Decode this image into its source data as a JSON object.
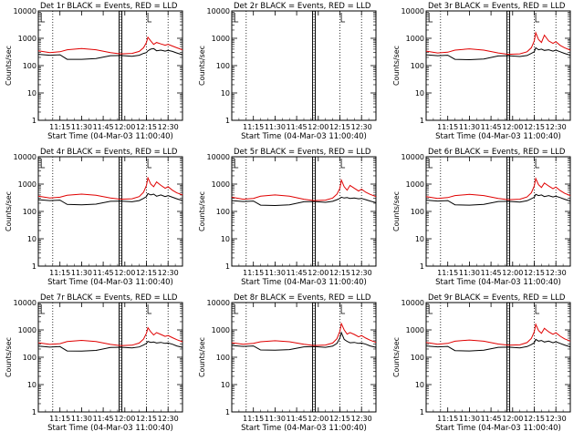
{
  "colors": {
    "events": "#000000",
    "lld": "#e00000",
    "background": "#ffffff"
  },
  "common": {
    "xlabel": "Start Time (04-Mar-03 11:00:40)",
    "ylabel": "Counts/sec",
    "x_tick_labels": [
      "11:15",
      "11:30",
      "11:45",
      "12:00",
      "12:15",
      "12:30"
    ],
    "y_tick_labels": [
      "1",
      "10",
      "100",
      "1000",
      "10000"
    ]
  },
  "chart_data": [
    {
      "type": "line",
      "panel": 1,
      "has_data": true,
      "title": "Det 1r BLACK = Events, RED = LLD",
      "xlabel": "Start Time (04-Mar-03 11:00:40)",
      "ylabel": "Counts/sec",
      "x_units": "minutes after 11:00",
      "xlim": [
        0,
        100
      ],
      "ylim": [
        1,
        10000
      ],
      "yscale": "log",
      "dotted_lines_x": [
        10,
        57,
        75,
        90
      ],
      "solid_lines_x": [
        57
      ],
      "series": [
        {
          "name": "Events",
          "color": "#000000",
          "x": [
            0,
            8,
            15,
            20,
            30,
            40,
            50,
            57,
            65,
            70,
            73,
            75,
            76,
            78,
            80,
            82,
            85,
            88,
            90,
            93,
            96,
            100
          ],
          "y": [
            260,
            240,
            250,
            170,
            170,
            180,
            230,
            235,
            220,
            240,
            280,
            300,
            350,
            400,
            420,
            350,
            370,
            340,
            360,
            330,
            290,
            250
          ]
        },
        {
          "name": "LLD",
          "color": "#e00000",
          "x": [
            0,
            8,
            15,
            20,
            30,
            40,
            50,
            57,
            65,
            70,
            73,
            75,
            76,
            78,
            80,
            82,
            85,
            88,
            90,
            93,
            96,
            100
          ],
          "y": [
            350,
            300,
            320,
            380,
            420,
            380,
            300,
            270,
            280,
            330,
            450,
            700,
            1100,
            800,
            600,
            700,
            620,
            560,
            600,
            520,
            450,
            380
          ]
        }
      ]
    },
    {
      "type": "line",
      "panel": 2,
      "has_data": false,
      "title": "Det 2r BLACK = Events, RED = LLD",
      "xlabel": "Start Time (04-Mar-03 11:00:40)",
      "ylabel": "Counts/sec",
      "x_units": "minutes after 11:00",
      "xlim": [
        0,
        100
      ],
      "ylim": [
        1,
        10000
      ],
      "yscale": "log",
      "dotted_lines_x": [
        10,
        57,
        75,
        90
      ],
      "solid_lines_x": [
        57
      ],
      "series": []
    },
    {
      "type": "line",
      "panel": 3,
      "has_data": true,
      "title": "Det 3r BLACK = Events, RED = LLD",
      "xlabel": "Start Time (04-Mar-03 11:00:40)",
      "ylabel": "Counts/sec",
      "x_units": "minutes after 11:00",
      "xlim": [
        0,
        100
      ],
      "ylim": [
        1,
        10000
      ],
      "yscale": "log",
      "dotted_lines_x": [
        10,
        57,
        75,
        90
      ],
      "solid_lines_x": [
        57
      ],
      "series": [
        {
          "name": "Events",
          "color": "#000000",
          "x": [
            0,
            8,
            15,
            20,
            30,
            40,
            50,
            57,
            65,
            70,
            73,
            75,
            76,
            78,
            80,
            82,
            85,
            88,
            90,
            93,
            96,
            100
          ],
          "y": [
            250,
            230,
            240,
            170,
            165,
            175,
            225,
            230,
            215,
            235,
            280,
            320,
            450,
            380,
            400,
            360,
            380,
            340,
            370,
            320,
            280,
            240
          ]
        },
        {
          "name": "LLD",
          "color": "#e00000",
          "x": [
            0,
            8,
            15,
            20,
            30,
            40,
            50,
            57,
            65,
            70,
            73,
            75,
            76,
            78,
            80,
            82,
            85,
            88,
            90,
            93,
            96,
            100
          ],
          "y": [
            340,
            290,
            310,
            370,
            410,
            370,
            290,
            260,
            270,
            320,
            450,
            800,
            1600,
            900,
            700,
            1300,
            800,
            650,
            750,
            550,
            450,
            370
          ]
        }
      ]
    },
    {
      "type": "line",
      "panel": 4,
      "has_data": true,
      "title": "Det 4r BLACK = Events, RED = LLD",
      "xlabel": "Start Time (04-Mar-03 11:00:40)",
      "ylabel": "Counts/sec",
      "x_units": "minutes after 11:00",
      "xlim": [
        0,
        100
      ],
      "ylim": [
        1,
        10000
      ],
      "yscale": "log",
      "dotted_lines_x": [
        10,
        57,
        75,
        90
      ],
      "solid_lines_x": [
        57
      ],
      "series": [
        {
          "name": "Events",
          "color": "#000000",
          "x": [
            0,
            8,
            15,
            20,
            30,
            40,
            50,
            57,
            65,
            70,
            73,
            75,
            76,
            78,
            80,
            82,
            85,
            88,
            90,
            93,
            96,
            100
          ],
          "y": [
            270,
            250,
            260,
            180,
            175,
            185,
            235,
            240,
            225,
            250,
            300,
            350,
            450,
            400,
            430,
            360,
            400,
            350,
            380,
            330,
            290,
            250
          ]
        },
        {
          "name": "LLD",
          "color": "#e00000",
          "x": [
            0,
            8,
            15,
            20,
            30,
            40,
            50,
            57,
            65,
            70,
            73,
            75,
            76,
            78,
            80,
            82,
            85,
            88,
            90,
            93,
            96,
            100
          ],
          "y": [
            360,
            310,
            330,
            390,
            430,
            390,
            310,
            280,
            290,
            350,
            500,
            900,
            1700,
            1000,
            800,
            1200,
            900,
            700,
            800,
            600,
            480,
            400
          ]
        }
      ]
    },
    {
      "type": "line",
      "panel": 5,
      "has_data": true,
      "title": "Det 5r BLACK = Events, RED = LLD",
      "xlabel": "Start Time (04-Mar-03 11:00:40)",
      "ylabel": "Counts/sec",
      "x_units": "minutes after 11:00",
      "xlim": [
        0,
        100
      ],
      "ylim": [
        1,
        10000
      ],
      "yscale": "log",
      "dotted_lines_x": [
        10,
        57,
        75,
        90
      ],
      "solid_lines_x": [
        57
      ],
      "series": [
        {
          "name": "Events",
          "color": "#000000",
          "x": [
            0,
            8,
            15,
            20,
            30,
            40,
            50,
            57,
            65,
            70,
            73,
            75,
            76,
            78,
            80,
            82,
            85,
            88,
            90,
            93,
            96,
            100
          ],
          "y": [
            250,
            230,
            240,
            170,
            165,
            175,
            225,
            230,
            215,
            235,
            270,
            300,
            330,
            310,
            320,
            300,
            310,
            290,
            300,
            270,
            240,
            210
          ]
        },
        {
          "name": "LLD",
          "color": "#e00000",
          "x": [
            0,
            8,
            15,
            20,
            30,
            40,
            50,
            57,
            65,
            70,
            73,
            75,
            76,
            78,
            80,
            82,
            85,
            88,
            90,
            93,
            96,
            100
          ],
          "y": [
            330,
            280,
            300,
            360,
            400,
            360,
            280,
            250,
            260,
            310,
            430,
            700,
            1400,
            800,
            600,
            900,
            700,
            560,
            650,
            500,
            420,
            350
          ]
        }
      ]
    },
    {
      "type": "line",
      "panel": 6,
      "has_data": true,
      "title": "Det 6r BLACK = Events, RED = LLD",
      "xlabel": "Start Time (04-Mar-03 11:00:40)",
      "ylabel": "Counts/sec",
      "x_units": "minutes after 11:00",
      "xlim": [
        0,
        100
      ],
      "ylim": [
        1,
        10000
      ],
      "yscale": "log",
      "dotted_lines_x": [
        10,
        57,
        75,
        90
      ],
      "solid_lines_x": [
        57
      ],
      "series": [
        {
          "name": "Events",
          "color": "#000000",
          "x": [
            0,
            8,
            15,
            20,
            30,
            40,
            50,
            57,
            65,
            70,
            73,
            75,
            76,
            78,
            80,
            82,
            85,
            88,
            90,
            93,
            96,
            100
          ],
          "y": [
            260,
            240,
            250,
            175,
            170,
            180,
            230,
            235,
            220,
            245,
            290,
            330,
            420,
            380,
            400,
            350,
            380,
            340,
            360,
            320,
            280,
            240
          ]
        },
        {
          "name": "LLD",
          "color": "#e00000",
          "x": [
            0,
            8,
            15,
            20,
            30,
            40,
            50,
            57,
            65,
            70,
            73,
            75,
            76,
            78,
            80,
            82,
            85,
            88,
            90,
            93,
            96,
            100
          ],
          "y": [
            350,
            300,
            320,
            380,
            420,
            380,
            300,
            270,
            280,
            340,
            480,
            850,
            1600,
            950,
            750,
            1100,
            850,
            680,
            780,
            580,
            460,
            380
          ]
        }
      ]
    },
    {
      "type": "line",
      "panel": 7,
      "has_data": true,
      "title": "Det 7r BLACK = Events, RED = LLD",
      "xlabel": "Start Time (04-Mar-03 11:00:40)",
      "ylabel": "Counts/sec",
      "x_units": "minutes after 11:00",
      "xlim": [
        0,
        100
      ],
      "ylim": [
        1,
        10000
      ],
      "yscale": "log",
      "dotted_lines_x": [
        10,
        57,
        75,
        90
      ],
      "solid_lines_x": [
        57
      ],
      "series": [
        {
          "name": "Events",
          "color": "#000000",
          "x": [
            0,
            8,
            15,
            20,
            30,
            40,
            50,
            57,
            65,
            70,
            73,
            75,
            76,
            78,
            80,
            82,
            85,
            88,
            90,
            93,
            96,
            100
          ],
          "y": [
            255,
            235,
            245,
            170,
            168,
            178,
            228,
            232,
            218,
            238,
            280,
            320,
            380,
            350,
            360,
            330,
            350,
            320,
            330,
            300,
            260,
            230
          ]
        },
        {
          "name": "LLD",
          "color": "#e00000",
          "x": [
            0,
            8,
            15,
            20,
            30,
            40,
            50,
            57,
            65,
            70,
            73,
            75,
            76,
            78,
            80,
            82,
            85,
            88,
            90,
            93,
            96,
            100
          ],
          "y": [
            340,
            295,
            315,
            375,
            415,
            375,
            295,
            265,
            275,
            330,
            460,
            750,
            1200,
            850,
            650,
            800,
            680,
            580,
            620,
            520,
            440,
            370
          ]
        }
      ]
    },
    {
      "type": "line",
      "panel": 8,
      "has_data": true,
      "title": "Det 8r BLACK = Events, RED = LLD",
      "xlabel": "Start Time (04-Mar-03 11:00:40)",
      "ylabel": "Counts/sec",
      "x_units": "minutes after 11:00",
      "xlim": [
        0,
        100
      ],
      "ylim": [
        1,
        10000
      ],
      "yscale": "log",
      "dotted_lines_x": [
        10,
        57,
        75,
        90
      ],
      "solid_lines_x": [
        57
      ],
      "series": [
        {
          "name": "Events",
          "color": "#000000",
          "x": [
            0,
            8,
            15,
            20,
            30,
            40,
            50,
            57,
            65,
            70,
            73,
            75,
            76,
            78,
            80,
            82,
            85,
            88,
            90,
            93,
            96,
            100
          ],
          "y": [
            270,
            250,
            260,
            185,
            180,
            190,
            240,
            245,
            230,
            255,
            320,
            500,
            800,
            450,
            380,
            340,
            350,
            320,
            330,
            300,
            260,
            230
          ]
        },
        {
          "name": "LLD",
          "color": "#e00000",
          "x": [
            0,
            8,
            15,
            20,
            30,
            40,
            50,
            57,
            65,
            70,
            73,
            75,
            76,
            78,
            80,
            82,
            85,
            88,
            90,
            93,
            96,
            100
          ],
          "y": [
            340,
            300,
            320,
            370,
            400,
            370,
            300,
            270,
            280,
            330,
            480,
            900,
            1700,
            1000,
            700,
            800,
            680,
            560,
            620,
            500,
            420,
            350
          ]
        }
      ]
    },
    {
      "type": "line",
      "panel": 9,
      "has_data": true,
      "title": "Det 9r BLACK = Events, RED = LLD",
      "xlabel": "Start Time (04-Mar-03 11:00:40)",
      "ylabel": "Counts/sec",
      "x_units": "minutes after 11:00",
      "xlim": [
        0,
        100
      ],
      "ylim": [
        1,
        10000
      ],
      "yscale": "log",
      "dotted_lines_x": [
        10,
        57,
        75,
        90
      ],
      "solid_lines_x": [
        57
      ],
      "series": [
        {
          "name": "Events",
          "color": "#000000",
          "x": [
            0,
            8,
            15,
            20,
            30,
            40,
            50,
            57,
            65,
            70,
            73,
            75,
            76,
            78,
            80,
            82,
            85,
            88,
            90,
            93,
            96,
            100
          ],
          "y": [
            260,
            240,
            250,
            175,
            170,
            180,
            230,
            235,
            220,
            245,
            290,
            340,
            450,
            390,
            410,
            360,
            390,
            340,
            370,
            320,
            280,
            240
          ]
        },
        {
          "name": "LLD",
          "color": "#e00000",
          "x": [
            0,
            8,
            15,
            20,
            30,
            40,
            50,
            57,
            65,
            70,
            73,
            75,
            76,
            78,
            80,
            82,
            85,
            88,
            90,
            93,
            96,
            100
          ],
          "y": [
            350,
            300,
            320,
            385,
            425,
            385,
            305,
            275,
            285,
            345,
            490,
            850,
            1600,
            950,
            750,
            1150,
            850,
            690,
            790,
            590,
            470,
            390
          ]
        }
      ]
    }
  ]
}
